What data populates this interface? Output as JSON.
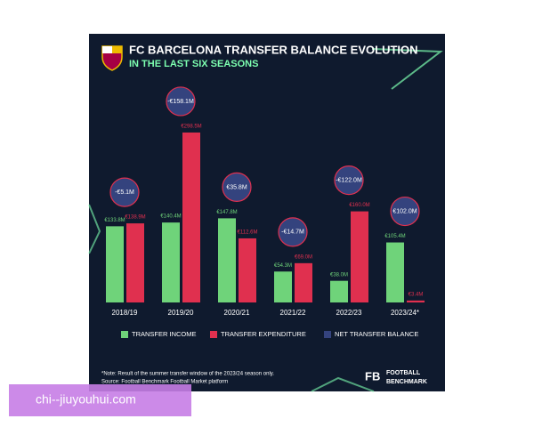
{
  "chart_data": {
    "type": "bar",
    "title": "FC BARCELONA TRANSFER BALANCE EVOLUTION",
    "subtitle": "IN THE LAST SIX SEASONS",
    "categories": [
      "2018/19",
      "2019/20",
      "2020/21",
      "2021/22",
      "2022/23",
      "2023/24*"
    ],
    "series": [
      {
        "name": "TRANSFER INCOME",
        "color": "#6fd37a",
        "values": [
          133.8,
          140.4,
          147.8,
          54.3,
          38.0,
          105.4
        ],
        "value_labels": [
          "€133.8M",
          "€140.4M",
          "€147.8M",
          "€54.3M",
          "€38.0M",
          "€105.4M"
        ]
      },
      {
        "name": "TRANSFER EXPENDITURE",
        "color": "#e0304f",
        "values": [
          138.9,
          298.5,
          112.6,
          69.0,
          160.0,
          3.4
        ],
        "value_labels": [
          "€138.9M",
          "€298.5M",
          "€112.6M",
          "€69.0M",
          "€160.0M",
          "€3.4M"
        ]
      },
      {
        "name": "NET TRANSFER BALANCE",
        "color": "#34437e",
        "values": [
          -5.1,
          -158.1,
          35.8,
          -14.7,
          -122.0,
          102.0
        ],
        "value_labels": [
          "-€5.1M",
          "-€158.1M",
          "€35.8M",
          "-€14.7M",
          "-€122.0M",
          "€102.0M"
        ]
      }
    ],
    "note": "*Note: Result of the summer transfer window of the 2023/24 season only.",
    "source": "Source: Football Benchmark Football Market platform",
    "brand": {
      "logo": "FB",
      "lines": [
        "FOOTBALL",
        "BENCHMARK"
      ]
    },
    "watermark": "chi--jiuyouhui.com"
  }
}
